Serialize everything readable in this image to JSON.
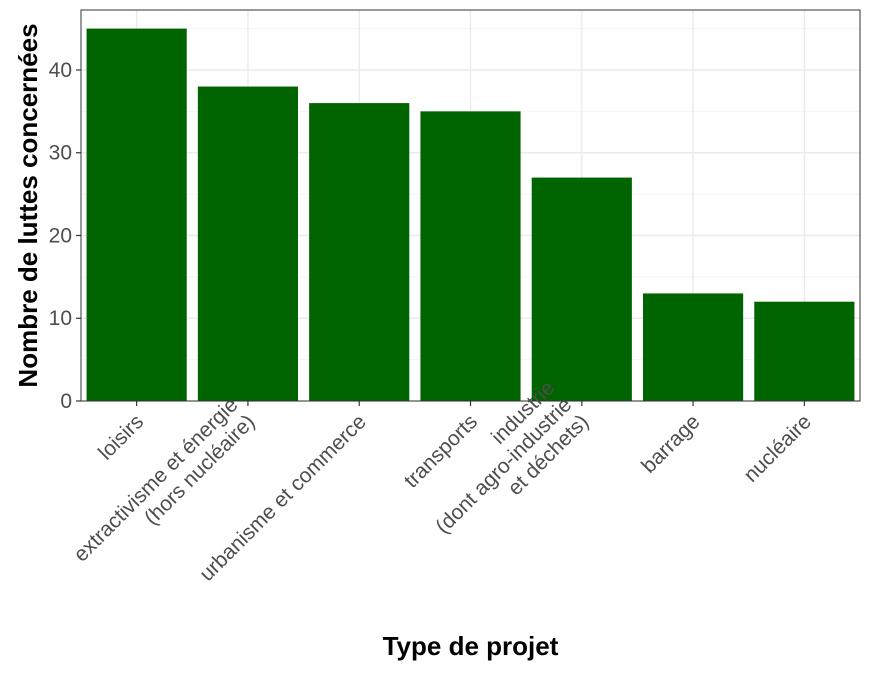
{
  "chart_data": {
    "type": "bar",
    "categories": [
      [
        "loisirs"
      ],
      [
        "extractivisme et énergie",
        "(hors nucléaire)"
      ],
      [
        "urbanisme et commerce"
      ],
      [
        "transports"
      ],
      [
        "industrie",
        "(dont agro-industrie",
        "et déchets)"
      ],
      [
        "barrage"
      ],
      [
        "nucléaire"
      ]
    ],
    "values": [
      45,
      38,
      36,
      35,
      27,
      13,
      12
    ],
    "xlabel": "Type de projet",
    "ylabel": "Nombre de luttes concernées",
    "ylim": [
      0,
      47.25
    ],
    "yticks": [
      0,
      10,
      20,
      30,
      40
    ],
    "grid": true,
    "colors": {
      "bar": "#006400",
      "panel_border": "#333333",
      "grid_major": "#ebebeb",
      "grid_minor": "#f4f4f4",
      "tick_text": "#4d4d4d"
    }
  }
}
